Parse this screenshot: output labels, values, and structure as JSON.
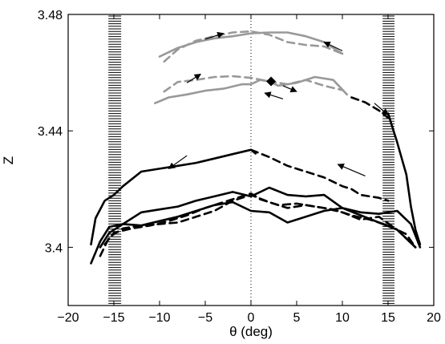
{
  "chart_data": {
    "type": "line",
    "title": "",
    "xlabel": "θ (deg)",
    "ylabel": "Z",
    "xlim": [
      -20,
      20
    ],
    "ylim": [
      3.38,
      3.48
    ],
    "xticks": [
      -20,
      -15,
      -10,
      -5,
      0,
      5,
      10,
      15,
      20
    ],
    "xtick_labels": [
      "−20",
      "−15",
      "−10",
      "−5",
      "0",
      "5",
      "10",
      "15",
      "20"
    ],
    "yticks": [
      3.4,
      3.44,
      3.48
    ],
    "ytick_labels": [
      "3.4",
      "3.44",
      "3.48"
    ],
    "grid": false,
    "legend": "none",
    "colors": {
      "black": "#000000",
      "gray": "#999999"
    },
    "vertical_reference": {
      "x": 0,
      "style": "dotted"
    },
    "hatched_bands": [
      {
        "x": [
          -15.6,
          -14.2
        ],
        "y": [
          3.38,
          3.48
        ]
      },
      {
        "x": [
          14.4,
          15.7
        ],
        "y": [
          3.38,
          3.48
        ]
      }
    ],
    "series": [
      {
        "color": "#999999",
        "dash": "solid",
        "points": [
          [
            -10,
            3.4655
          ],
          [
            -8,
            3.4685
          ],
          [
            -6,
            3.4705
          ],
          [
            -4,
            3.4718
          ],
          [
            -2,
            3.4725
          ],
          [
            0,
            3.4735
          ],
          [
            2,
            3.4738
          ],
          [
            4,
            3.4738
          ],
          [
            6,
            3.4725
          ],
          [
            8,
            3.4705
          ],
          [
            10,
            3.4665
          ]
        ]
      },
      {
        "color": "#999999",
        "dash": "dashed",
        "points": [
          [
            -9.5,
            3.4638
          ],
          [
            -8,
            3.468
          ],
          [
            -6,
            3.471
          ],
          [
            -4,
            3.4725
          ],
          [
            -2,
            3.4738
          ],
          [
            0,
            3.4742
          ],
          [
            2,
            3.473
          ],
          [
            4,
            3.4705
          ],
          [
            6,
            3.4695
          ],
          [
            8,
            3.469
          ],
          [
            10,
            3.4665
          ]
        ]
      },
      {
        "color": "#999999",
        "dash": "dashed",
        "points": [
          [
            -9.5,
            3.4535
          ],
          [
            -8,
            3.4568
          ],
          [
            -6,
            3.4575
          ],
          [
            -4,
            3.4585
          ],
          [
            -2,
            3.4588
          ],
          [
            0,
            3.4582
          ],
          [
            2,
            3.457
          ],
          [
            4,
            3.456
          ],
          [
            6,
            3.4575
          ],
          [
            8,
            3.4555
          ],
          [
            10,
            3.454
          ]
        ]
      },
      {
        "color": "#999999",
        "dash": "solid",
        "points": [
          [
            -10.5,
            3.4495
          ],
          [
            -9,
            3.4515
          ],
          [
            -7,
            3.4525
          ],
          [
            -5,
            3.4538
          ],
          [
            -3,
            3.4545
          ],
          [
            -1,
            3.456
          ],
          [
            0,
            3.456
          ],
          [
            1,
            3.4575
          ],
          [
            2,
            3.457
          ],
          [
            3,
            3.4555
          ],
          [
            5,
            3.4565
          ],
          [
            7,
            3.4585
          ],
          [
            9,
            3.4575
          ],
          [
            10.5,
            3.4525
          ]
        ]
      },
      {
        "color": "#000000",
        "dash": "dashed",
        "points": [
          [
            11,
            3.4515
          ],
          [
            12.5,
            3.4498
          ],
          [
            14,
            3.447
          ],
          [
            15,
            3.4445
          ]
        ]
      },
      {
        "color": "#000000",
        "dash": "solid",
        "points": [
          [
            -17.5,
            3.401
          ],
          [
            -17,
            3.41
          ],
          [
            -16,
            3.416
          ],
          [
            -15,
            3.418
          ],
          [
            -14,
            3.421
          ],
          [
            -12,
            3.426
          ],
          [
            -10,
            3.427
          ],
          [
            -8,
            3.428
          ],
          [
            -6,
            3.429
          ],
          [
            -4,
            3.4305
          ],
          [
            -2,
            3.432
          ],
          [
            0,
            3.4335
          ],
          [
            0.5,
            3.4322
          ]
        ]
      },
      {
        "color": "#000000",
        "dash": "dashed",
        "points": [
          [
            0,
            3.4335
          ],
          [
            2,
            3.431
          ],
          [
            4,
            3.428
          ],
          [
            6,
            3.426
          ],
          [
            8,
            3.424
          ],
          [
            10,
            3.421
          ],
          [
            11,
            3.42
          ],
          [
            12,
            3.418
          ],
          [
            14,
            3.417
          ],
          [
            15,
            3.416
          ]
        ]
      },
      {
        "color": "#000000",
        "dash": "solid",
        "points": [
          [
            15,
            3.446
          ],
          [
            16,
            3.436
          ],
          [
            17,
            3.425
          ],
          [
            17.5,
            3.414
          ],
          [
            18,
            3.406
          ],
          [
            18.5,
            3.401
          ]
        ]
      },
      {
        "color": "#000000",
        "dash": "solid",
        "points": [
          [
            -17.5,
            3.3945
          ],
          [
            -16.5,
            3.402
          ],
          [
            -15.5,
            3.407
          ],
          [
            -14,
            3.408
          ],
          [
            -12,
            3.412
          ],
          [
            -10,
            3.413
          ],
          [
            -8,
            3.414
          ],
          [
            -6,
            3.416
          ],
          [
            -4,
            3.4175
          ],
          [
            -2,
            3.419
          ],
          [
            0,
            3.4175
          ],
          [
            2,
            3.4205
          ],
          [
            4,
            3.418
          ],
          [
            6,
            3.4175
          ],
          [
            8,
            3.418
          ],
          [
            10,
            3.4135
          ],
          [
            12,
            3.412
          ],
          [
            14,
            3.4115
          ],
          [
            16,
            3.4125
          ],
          [
            17.5,
            3.408
          ],
          [
            18.5,
            3.4
          ]
        ]
      },
      {
        "color": "#000000",
        "dash": "solid",
        "points": [
          [
            -16.5,
            3.4
          ],
          [
            -15.5,
            3.405
          ],
          [
            -14,
            3.408
          ],
          [
            -12,
            3.4075
          ],
          [
            -10,
            3.409
          ],
          [
            -8,
            3.4105
          ],
          [
            -6,
            3.4125
          ],
          [
            -4,
            3.4145
          ],
          [
            -2,
            3.4155
          ],
          [
            0,
            3.4125
          ],
          [
            2,
            3.412
          ],
          [
            4,
            3.4085
          ],
          [
            6,
            3.4105
          ],
          [
            8,
            3.4125
          ],
          [
            10,
            3.4135
          ],
          [
            12,
            3.411
          ],
          [
            14,
            3.4085
          ],
          [
            16,
            3.406
          ],
          [
            18,
            3.4
          ]
        ]
      },
      {
        "color": "#000000",
        "dash": "dashed",
        "points": [
          [
            -16.5,
            3.397
          ],
          [
            -15.5,
            3.4035
          ],
          [
            -14,
            3.4065
          ],
          [
            -12,
            3.4075
          ],
          [
            -10,
            3.408
          ],
          [
            -8,
            3.4085
          ],
          [
            -6,
            3.4105
          ],
          [
            -4,
            3.4125
          ],
          [
            -2,
            3.416
          ],
          [
            0,
            3.418
          ],
          [
            2,
            3.4155
          ],
          [
            4,
            3.4135
          ],
          [
            6,
            3.4145
          ],
          [
            8,
            3.4135
          ],
          [
            10,
            3.412
          ],
          [
            12,
            3.4095
          ],
          [
            14,
            3.4105
          ],
          [
            16,
            3.406
          ],
          [
            18,
            3.4
          ]
        ]
      },
      {
        "color": "#000000",
        "dash": "dashed",
        "points": [
          [
            -16,
            3.401
          ],
          [
            -15,
            3.405
          ],
          [
            -13,
            3.4065
          ],
          [
            -11,
            3.4075
          ],
          [
            -9,
            3.409
          ],
          [
            -7,
            3.411
          ],
          [
            -5,
            3.4135
          ],
          [
            -3,
            3.4155
          ],
          [
            -1,
            3.4175
          ],
          [
            0,
            3.4185
          ],
          [
            1,
            3.4165
          ],
          [
            3,
            3.4145
          ],
          [
            5,
            3.415
          ],
          [
            7,
            3.414
          ],
          [
            9,
            3.413
          ],
          [
            11,
            3.411
          ],
          [
            13,
            3.4095
          ],
          [
            15,
            3.4075
          ],
          [
            17,
            3.4045
          ],
          [
            18,
            3.4
          ]
        ]
      }
    ],
    "arrows": [
      {
        "from": [
          -5,
          3.4715
        ],
        "to": [
          -3,
          3.4735
        ]
      },
      {
        "from": [
          10,
          3.4675
        ],
        "to": [
          8,
          3.4705
        ]
      },
      {
        "from": [
          -7,
          3.4565
        ],
        "to": [
          -5.5,
          3.4595
        ]
      },
      {
        "from": [
          3.5,
          3.4555
        ],
        "to": [
          5,
          3.4535
        ]
      },
      {
        "from": [
          3.5,
          3.451
        ],
        "to": [
          1.5,
          3.453
        ]
      },
      {
        "from": [
          13.5,
          3.4495
        ],
        "to": [
          15,
          3.4455
        ]
      },
      {
        "from": [
          -7,
          3.4315
        ],
        "to": [
          -9,
          3.427
        ]
      },
      {
        "from": [
          12.5,
          3.4245
        ],
        "to": [
          9.5,
          3.4285
        ]
      }
    ],
    "markers": [
      {
        "shape": "diamond",
        "x": 2.2,
        "y": 3.457
      }
    ]
  }
}
